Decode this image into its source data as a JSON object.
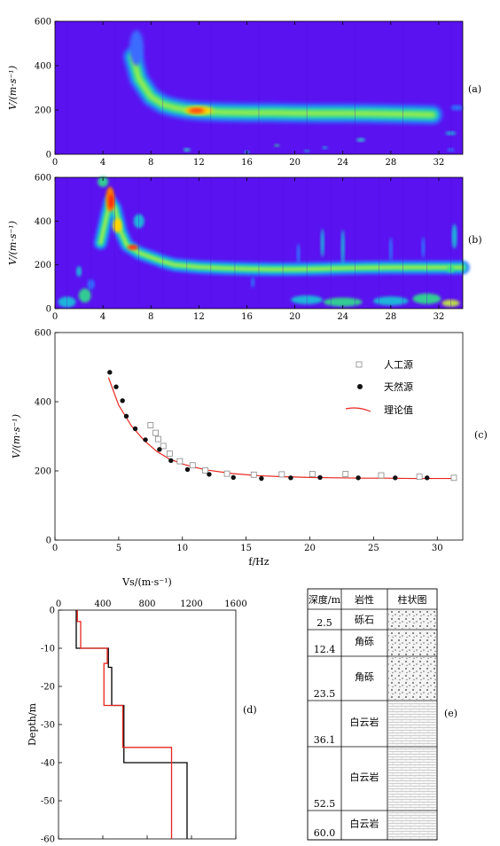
{
  "panel_labels": {
    "a": "(a)",
    "b": "(b)",
    "c": "(c)",
    "d": "(d)",
    "e": "(e)"
  },
  "chart_data": [
    {
      "type": "heatmap",
      "panel": "(a)",
      "ylabel": "V/(m·s⁻¹)",
      "xlim": [
        0,
        34
      ],
      "ylim": [
        0,
        600
      ],
      "xticks": [
        "0",
        "4",
        "8",
        "12",
        "16",
        "20",
        "24",
        "28",
        "32"
      ],
      "yticks": [
        "0",
        "200",
        "400",
        "600"
      ],
      "ridge": {
        "x": [
          6.5,
          7,
          8,
          9,
          10,
          11,
          12,
          13,
          14,
          16,
          18,
          20,
          22,
          24,
          26,
          28,
          30,
          31.5
        ],
        "y": [
          440,
          340,
          260,
          225,
          210,
          200,
          195,
          192,
          190,
          188,
          188,
          186,
          185,
          185,
          184,
          182,
          180,
          178
        ]
      }
    },
    {
      "type": "heatmap",
      "panel": "(b)",
      "ylabel": "V/(m·s⁻¹)",
      "xlim": [
        0,
        34
      ],
      "ylim": [
        0,
        600
      ],
      "xticks": [
        "0",
        "4",
        "8",
        "12",
        "16",
        "20",
        "24",
        "28",
        "32"
      ],
      "yticks": [
        "0",
        "200",
        "400",
        "600"
      ],
      "ridge": {
        "x": [
          3.8,
          4.3,
          4.6,
          5,
          5.5,
          6,
          7,
          8,
          9,
          10,
          12,
          14,
          16,
          18,
          20,
          22,
          24,
          26,
          28,
          30,
          32,
          34
        ],
        "y": [
          300,
          420,
          490,
          460,
          350,
          290,
          255,
          235,
          215,
          200,
          190,
          185,
          182,
          180,
          180,
          182,
          185,
          187,
          188,
          188,
          188,
          188
        ]
      }
    },
    {
      "type": "scatter",
      "panel": "(c)",
      "xlabel": "f/Hz",
      "ylabel": "V/(m·s⁻¹)",
      "xlim": [
        0,
        32
      ],
      "ylim": [
        0,
        600
      ],
      "xticks": [
        "0",
        "5",
        "10",
        "15",
        "20",
        "25",
        "30"
      ],
      "yticks": [
        "0",
        "200",
        "400",
        "600"
      ],
      "legend_position": "top-right",
      "series": [
        {
          "name": "人工源",
          "marker": "open-square",
          "x": [
            7.5,
            7.9,
            8.1,
            8.5,
            9.0,
            9.8,
            10.8,
            11.8,
            13.5,
            15.6,
            17.8,
            20.2,
            22.8,
            25.6,
            28.6,
            31.3
          ],
          "y": [
            332,
            310,
            292,
            272,
            250,
            228,
            216,
            201,
            192,
            189,
            190,
            191,
            191,
            187,
            183,
            180
          ]
        },
        {
          "name": "天然源",
          "marker": "filled-circle",
          "x": [
            4.3,
            4.8,
            5.3,
            5.6,
            6.3,
            7.1,
            8.2,
            9.1,
            10.4,
            12.1,
            14.0,
            16.2,
            18.5,
            20.8,
            23.8,
            26.7,
            29.2
          ],
          "y": [
            485,
            443,
            403,
            358,
            322,
            290,
            262,
            230,
            204,
            190,
            181,
            178,
            180,
            181,
            180,
            180,
            180
          ]
        },
        {
          "name": "理论值",
          "marker": "red-line",
          "x": [
            4.2,
            5,
            6,
            7,
            8,
            9,
            10,
            11,
            12,
            14,
            16,
            18,
            20,
            22,
            24,
            26,
            28,
            30,
            31.5
          ],
          "y": [
            470,
            390,
            330,
            288,
            256,
            234,
            220,
            210,
            202,
            192,
            186,
            183,
            181,
            180,
            179,
            179,
            178,
            178,
            178
          ]
        }
      ]
    },
    {
      "type": "line",
      "panel": "(d)",
      "xlabel": "Vs/(m·s⁻¹)",
      "ylabel": "Depth/m",
      "xlim": [
        0,
        1600
      ],
      "ylim": [
        -60,
        0
      ],
      "xticks": [
        "0",
        "400",
        "800",
        "1200",
        "1600"
      ],
      "yticks": [
        "0",
        "-10",
        "-20",
        "-30",
        "-40",
        "-50",
        "-60"
      ],
      "series": [
        {
          "color": "#000000",
          "vs": [
            160,
            160,
            450,
            450,
            480,
            480,
            590,
            590,
            1160,
            1160
          ],
          "depth": [
            0,
            -10,
            -10,
            -15,
            -15,
            -25,
            -25,
            -40,
            -40,
            -60
          ]
        },
        {
          "color": "#e8261e",
          "vs": [
            170,
            170,
            200,
            200,
            440,
            440,
            410,
            410,
            580,
            580,
            720,
            720,
            1020,
            1020
          ],
          "depth": [
            0,
            -3,
            -3,
            -10,
            -10,
            -14,
            -14,
            -25,
            -25,
            -36,
            -36,
            -36,
            -36,
            -60
          ]
        }
      ]
    }
  ],
  "strat_table": {
    "headers": [
      "深度/m",
      "岩性",
      "柱状图"
    ],
    "rows": [
      {
        "depth": "2.5",
        "lith": "砾石"
      },
      {
        "depth": "12.4",
        "lith": "角砾"
      },
      {
        "depth": "23.5",
        "lith": "角砾"
      },
      {
        "depth": "36.1",
        "lith": "白云岩"
      },
      {
        "depth": "52.5",
        "lith": "白云岩"
      },
      {
        "depth": "60.0",
        "lith": "白云岩"
      }
    ]
  }
}
